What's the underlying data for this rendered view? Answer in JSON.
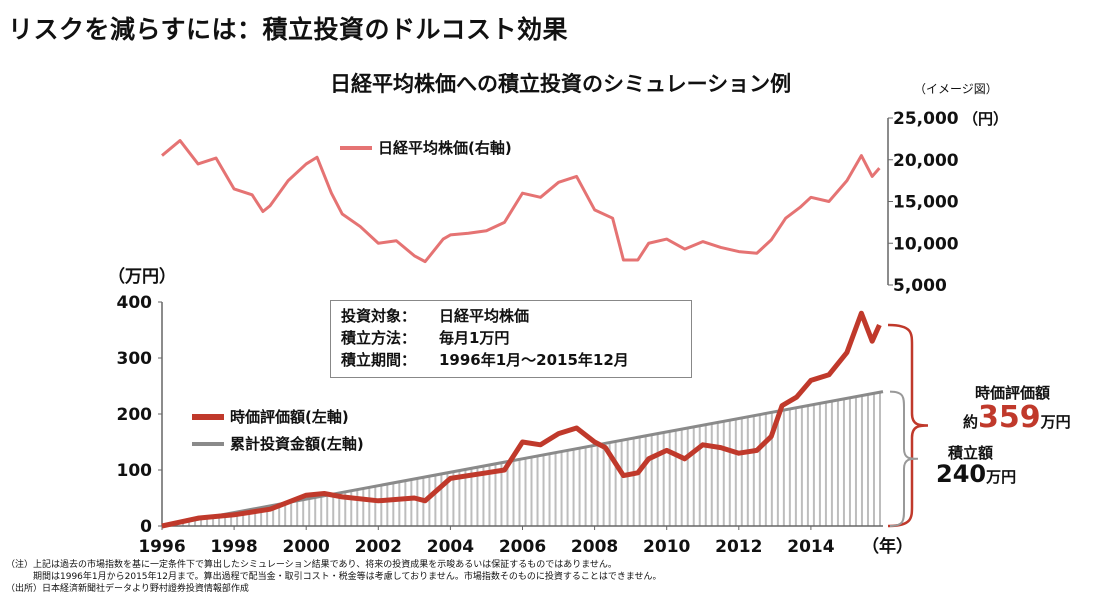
{
  "page": {
    "heading": "リスクを減らすには：積立投資のドルコスト効果",
    "chart_title": "日経平均株価への積立投資のシミュレーション例",
    "image_note": "（イメージ図）"
  },
  "info_box": {
    "rows": [
      {
        "label": "投資対象：",
        "value": "日経平均株価"
      },
      {
        "label": "積立方法：",
        "value": "毎月1万円"
      },
      {
        "label": "積立期間：",
        "value": "1996年1月～2015年12月"
      }
    ]
  },
  "callouts": {
    "market_value_title": "時価評価額",
    "market_value_prefix": "約",
    "market_value_number": "359",
    "market_value_unit": "万円",
    "contributed_title": "積立額",
    "contributed_number": "240",
    "contributed_unit": "万円"
  },
  "footnotes": [
    "（注）上記は過去の市場指数を基に一定条件下で算出したシミュレーション結果であり、将来の投資成果を示唆あるいは保証するものではありません。",
    "　　　期間は1996年1月から2015年12月まで。算出過程で配当金・取引コスト・税金等は考慮しておりません。市場指数そのものに投資することはできません。",
    "（出所）日本経済新聞社データより野村證券投資情報部作成"
  ],
  "colors": {
    "market_value": "#c0392b",
    "nikkei": "#e57373",
    "cumulative": "#8a8a8a",
    "bars": "#bdbdbd",
    "bracket_red": "#c0392b",
    "bracket_gray": "#999999"
  },
  "chart_data": [
    {
      "type": "line",
      "title": "",
      "ylabel": "（円）",
      "ylim": [
        5000,
        25000
      ],
      "yticks": [
        "25,000",
        "20,000",
        "15,000",
        "10,000",
        "5,000"
      ],
      "axis": "right",
      "series": [
        {
          "name": "日経平均株価(右軸)",
          "x": [
            1996.0,
            1996.5,
            1997.0,
            1997.5,
            1998.0,
            1998.5,
            1998.8,
            1999.0,
            1999.5,
            2000.0,
            2000.3,
            2000.7,
            2001.0,
            2001.5,
            2002.0,
            2002.5,
            2003.0,
            2003.3,
            2003.8,
            2004.0,
            2004.5,
            2005.0,
            2005.5,
            2006.0,
            2006.5,
            2007.0,
            2007.5,
            2008.0,
            2008.5,
            2008.8,
            2009.2,
            2009.5,
            2010.0,
            2010.5,
            2011.0,
            2011.5,
            2012.0,
            2012.5,
            2012.9,
            2013.3,
            2013.7,
            2014.0,
            2014.5,
            2015.0,
            2015.4,
            2015.7,
            2015.9
          ],
          "y": [
            20500,
            22300,
            19500,
            20200,
            16500,
            15800,
            13800,
            14500,
            17500,
            19500,
            20300,
            16000,
            13500,
            12000,
            10000,
            10300,
            8500,
            7800,
            10500,
            11000,
            11200,
            11500,
            12500,
            16000,
            15500,
            17300,
            18000,
            14000,
            13000,
            8000,
            8000,
            10000,
            10500,
            9300,
            10200,
            9500,
            9000,
            8800,
            10400,
            13000,
            14300,
            15500,
            15000,
            17500,
            20500,
            18000,
            19000
          ]
        }
      ]
    },
    {
      "type": "line",
      "title": "",
      "ylabel": "（万円）",
      "xlabel": "（年）",
      "ylim": [
        0,
        400
      ],
      "xlim": [
        1996,
        2016
      ],
      "xticks": [
        "1996",
        "1998",
        "2000",
        "2002",
        "2004",
        "2006",
        "2008",
        "2010",
        "2012",
        "2014"
      ],
      "yticks": [
        "400",
        "300",
        "200",
        "100",
        "0"
      ],
      "axis": "left",
      "series": [
        {
          "name": "時価評価額(左軸)",
          "x": [
            1996.0,
            1997.0,
            1998.0,
            1999.0,
            2000.0,
            2000.5,
            2001.0,
            2002.0,
            2003.0,
            2003.3,
            2004.0,
            2005.0,
            2005.5,
            2006.0,
            2006.5,
            2007.0,
            2007.5,
            2008.0,
            2008.3,
            2008.8,
            2009.2,
            2009.5,
            2010.0,
            2010.5,
            2011.0,
            2011.5,
            2012.0,
            2012.5,
            2012.9,
            2013.2,
            2013.6,
            2014.0,
            2014.5,
            2015.0,
            2015.4,
            2015.7,
            2015.9
          ],
          "y": [
            0,
            14,
            20,
            30,
            55,
            58,
            52,
            45,
            50,
            45,
            85,
            95,
            100,
            150,
            145,
            165,
            175,
            150,
            140,
            90,
            95,
            120,
            135,
            120,
            145,
            140,
            130,
            135,
            160,
            215,
            230,
            260,
            270,
            310,
            380,
            330,
            359
          ]
        },
        {
          "name": "累計投資金額(左軸)",
          "x": [
            1996,
            2016
          ],
          "y": [
            0,
            240
          ]
        }
      ]
    }
  ]
}
